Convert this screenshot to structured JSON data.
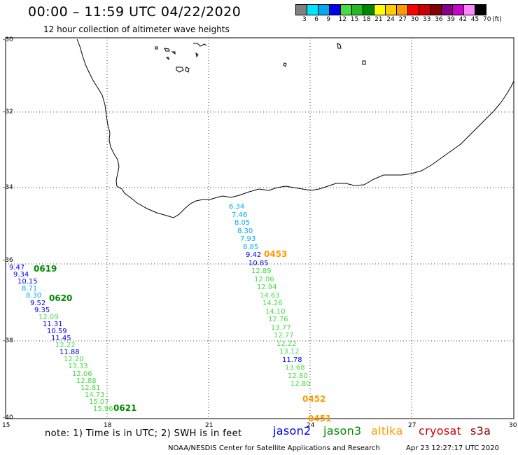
{
  "title": "00:00  –  11:59 UTC 04/22/2020",
  "subtitle": "12 hour collection of altimeter wave heights",
  "legend": {
    "colors": [
      "#808080",
      "#00e5ff",
      "#00aaee",
      "#0000ee",
      "#44dd44",
      "#22bb22",
      "#008800",
      "#ffff00",
      "#ffcc00",
      "#ff9900",
      "#ff0000",
      "#cc0000",
      "#880000",
      "#880088",
      "#cc00cc",
      "#ff88ff",
      "#000000"
    ],
    "ticks": [
      "3",
      "6",
      "9",
      "12",
      "15",
      "18",
      "21",
      "24",
      "27",
      "30",
      "33",
      "36",
      "39",
      "42",
      "45",
      "70",
      "(ft)"
    ]
  },
  "lat_labels": [
    "-30",
    "-32",
    "-34",
    "-36",
    "-38",
    "-40"
  ],
  "lon_labels": [
    "15",
    "18",
    "21",
    "24",
    "27",
    "30"
  ],
  "satellite_colors": {
    "jason2": "#0000ee",
    "jason3": "#008800",
    "altika": "#ff9900",
    "cryosat": "#cc0000",
    "s3a": "#880000"
  },
  "tracks": [
    {
      "passes": [
        "0619",
        "0620",
        "0621"
      ],
      "values": [
        "9.47",
        "9.34",
        "10.15",
        "8.71",
        "8.30",
        "9.52",
        "9.35",
        "12.09",
        "11.31",
        "10.59",
        "11.45",
        "12.22",
        "11.88",
        "12.20",
        "13.33",
        "12.06",
        "12.88",
        "12.81",
        "14.73",
        "15.07",
        "15.96"
      ],
      "colors": [
        "#0000ee",
        "#0000ee",
        "#0000ee",
        "#00aaee",
        "#00aaee",
        "#0000ee",
        "#0000ee",
        "#44dd44",
        "#0000ee",
        "#0000ee",
        "#0000ee",
        "#44dd44",
        "#0000ee",
        "#44dd44",
        "#44dd44",
        "#44dd44",
        "#44dd44",
        "#44dd44",
        "#44dd44",
        "#44dd44",
        "#44dd44"
      ]
    },
    {
      "passes": [
        "0453",
        "0452",
        "0451"
      ],
      "values": [
        "6.34",
        "7.46",
        "8.05",
        "8.30",
        "7.93",
        "8.85",
        "9.42",
        "10.85",
        "12.89",
        "12.06",
        "12.94",
        "14.63",
        "14.26",
        "14.10",
        "12.76",
        "13.77",
        "12.77",
        "12.22",
        "13.12",
        "11.78",
        "13.68",
        "12.80",
        "12.80"
      ],
      "colors": [
        "#00aaee",
        "#00aaee",
        "#00aaee",
        "#00aaee",
        "#00aaee",
        "#00aaee",
        "#0000ee",
        "#0000ee",
        "#44dd44",
        "#44dd44",
        "#44dd44",
        "#44dd44",
        "#44dd44",
        "#44dd44",
        "#44dd44",
        "#44dd44",
        "#44dd44",
        "#44dd44",
        "#44dd44",
        "#0000ee",
        "#44dd44",
        "#44dd44",
        "#44dd44"
      ]
    }
  ],
  "pass_colors": {
    "0619": "#008800",
    "0620": "#008800",
    "0621": "#008800",
    "0453": "#ff9900",
    "0452": "#ff9900",
    "0451": "#ff9900"
  },
  "footer": {
    "note": "note:  1) Time is in UTC;  2) SWH is in feet",
    "satellites": [
      "jason2",
      "jason3",
      "altika",
      "cryosat",
      "s3a"
    ],
    "credit": "NOAA/NESDIS Center for Satellite Applications and Research",
    "timestamp": "Apr 23 12:27:17 UTC 2020"
  }
}
